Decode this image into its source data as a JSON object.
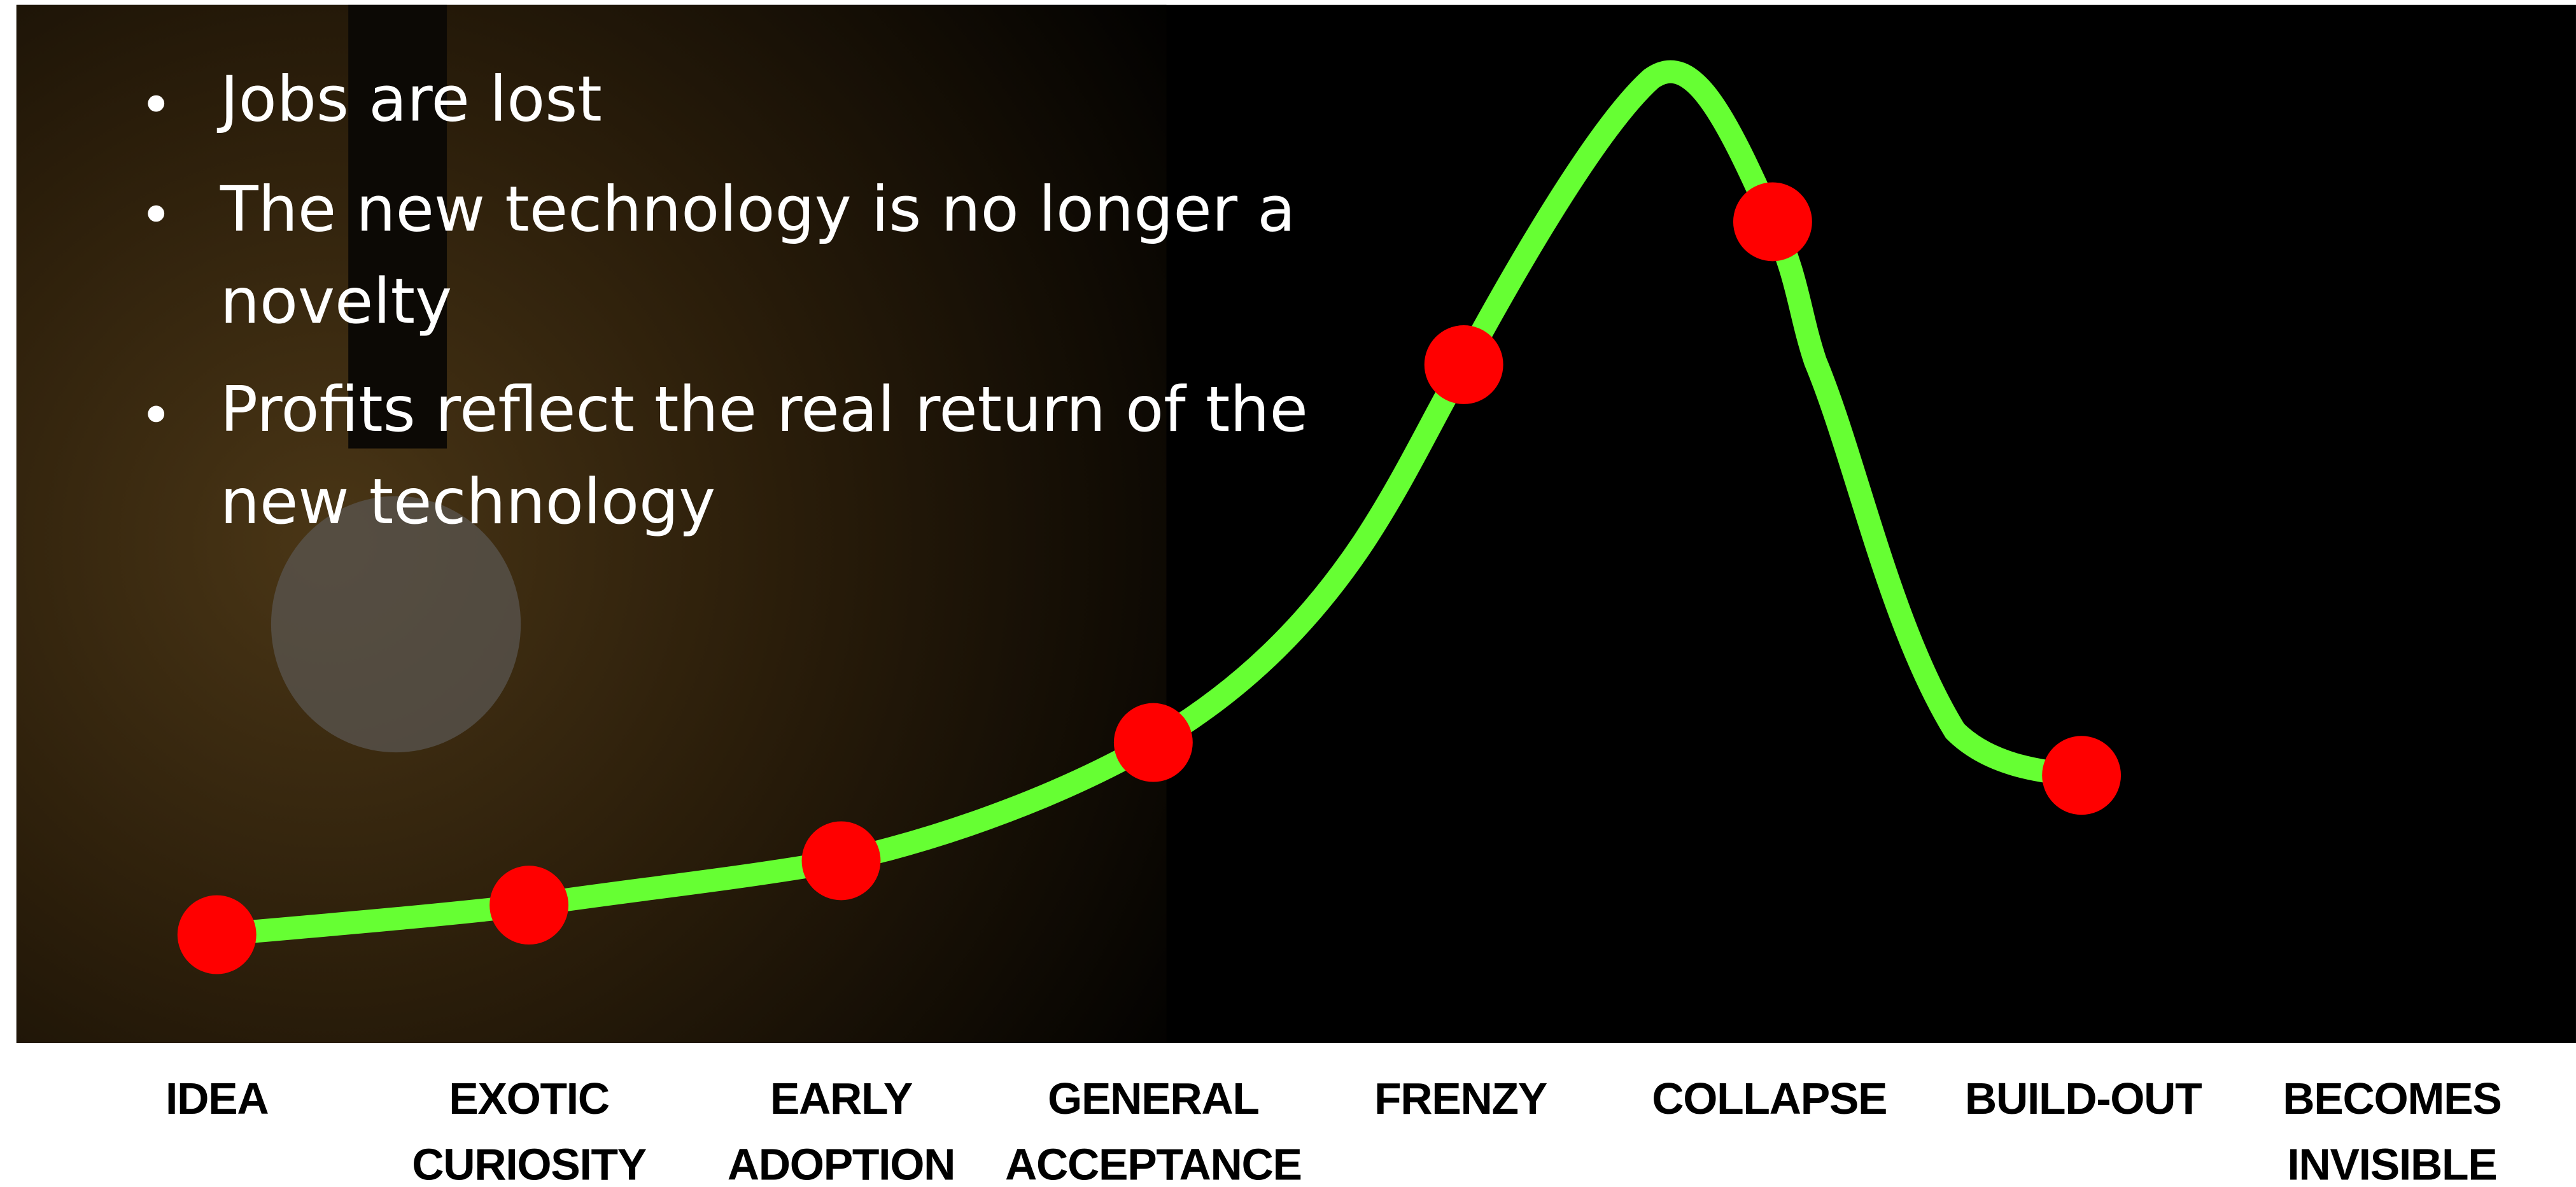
{
  "bullets": [
    [
      "Jobs are lost"
    ],
    [
      "The new technology is no longer a",
      "novelty"
    ],
    [
      "Profits reflect the real return of the",
      "new technology"
    ]
  ],
  "stages": [
    [
      "IDEA"
    ],
    [
      "EXOTIC",
      "CURIOSITY"
    ],
    [
      "EARLY",
      "ADOPTION"
    ],
    [
      "GENERAL",
      "ACCEPTANCE"
    ],
    [
      "FRENZY"
    ],
    [
      "COLLAPSE"
    ],
    [
      "BUILD-OUT"
    ],
    [
      "BECOMES",
      "INVISIBLE"
    ]
  ]
}
